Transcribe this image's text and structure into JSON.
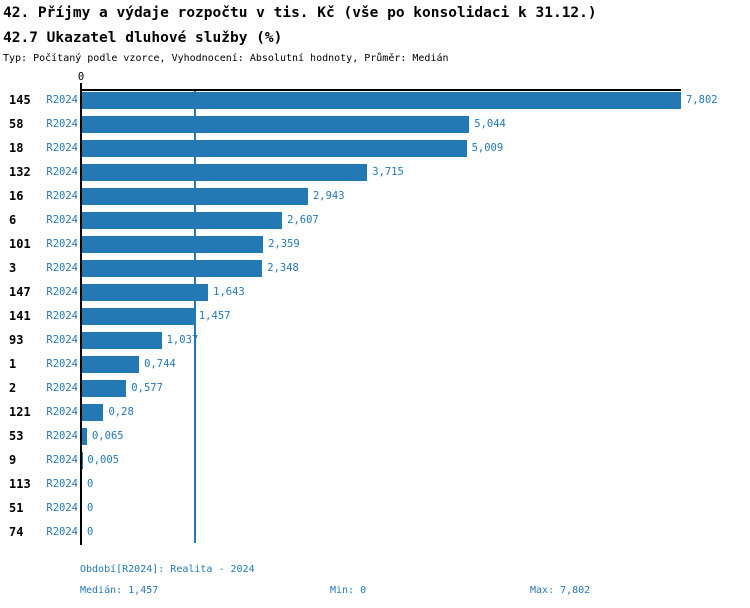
{
  "header": {
    "title": "42. Příjmy a výdaje rozpočtu v tis. Kč (vše po konsolidaci k 31.12.)",
    "subtitle": "42.7 Ukazatel dluhové služby (%)",
    "meta": "Typ: Počítaný podle vzorce, Vyhodnocení: Absolutní hodnoty, Průměr: Medián"
  },
  "chart_data": {
    "type": "bar",
    "orientation": "horizontal",
    "title": "42.7 Ukazatel dluhové služby (%)",
    "xlabel": "",
    "ylabel": "",
    "xlim": [
      0,
      7.802
    ],
    "x_tick_labels": [
      "0"
    ],
    "grid": false,
    "median": 1.457,
    "categories": [
      "145",
      "58",
      "18",
      "132",
      "16",
      "6",
      "101",
      "3",
      "147",
      "141",
      "93",
      "1",
      "2",
      "121",
      "53",
      "9",
      "113",
      "51",
      "74"
    ],
    "series": [
      {
        "name": "R2024",
        "values": [
          7.802,
          5.044,
          5.009,
          3.715,
          2.943,
          2.607,
          2.359,
          2.348,
          1.643,
          1.457,
          1.037,
          0.744,
          0.577,
          0.28,
          0.065,
          0.005,
          0,
          0,
          0
        ],
        "value_labels": [
          "7,802",
          "5,044",
          "5,009",
          "3,715",
          "2,943",
          "2,607",
          "2,359",
          "2,348",
          "1,643",
          "1,457",
          "1,037",
          "0,744",
          "0,577",
          "0,28",
          "0,065",
          "0,005",
          "0",
          "0",
          "0"
        ]
      }
    ],
    "colors": {
      "bar": "#2478b4",
      "blue_text": "#2478b4",
      "axis": "#000000",
      "median_line": "#2478b4"
    }
  },
  "footer": {
    "period_line": "Období[R2024]: Realita - 2024",
    "median_label": "Medián: 1,457",
    "min_label": "Min: 0",
    "max_label": "Max: 7,802"
  }
}
